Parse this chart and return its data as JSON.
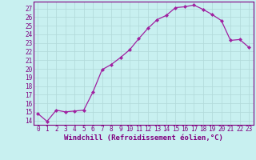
{
  "x": [
    0,
    1,
    2,
    3,
    4,
    5,
    6,
    7,
    8,
    9,
    10,
    11,
    12,
    13,
    14,
    15,
    16,
    17,
    18,
    19,
    20,
    21,
    22,
    23
  ],
  "y": [
    14.8,
    13.9,
    15.2,
    15.0,
    15.1,
    15.2,
    17.3,
    19.9,
    20.5,
    21.3,
    22.2,
    23.5,
    24.7,
    25.7,
    26.2,
    27.1,
    27.2,
    27.4,
    26.9,
    26.3,
    25.6,
    23.3,
    23.4,
    22.5
  ],
  "line_color": "#a020a0",
  "marker": "D",
  "marker_size": 2.0,
  "bg_color": "#c8f0f0",
  "grid_color": "#b0d8d8",
  "xlabel": "Windchill (Refroidissement éolien,°C)",
  "ylabel_ticks": [
    14,
    15,
    16,
    17,
    18,
    19,
    20,
    21,
    22,
    23,
    24,
    25,
    26,
    27
  ],
  "ylim": [
    13.5,
    27.8
  ],
  "xlim": [
    -0.5,
    23.5
  ],
  "spine_color": "#800080",
  "tick_label_color": "#800080",
  "xlabel_color": "#800080",
  "tick_fontsize": 5.5,
  "xlabel_fontsize": 6.5
}
